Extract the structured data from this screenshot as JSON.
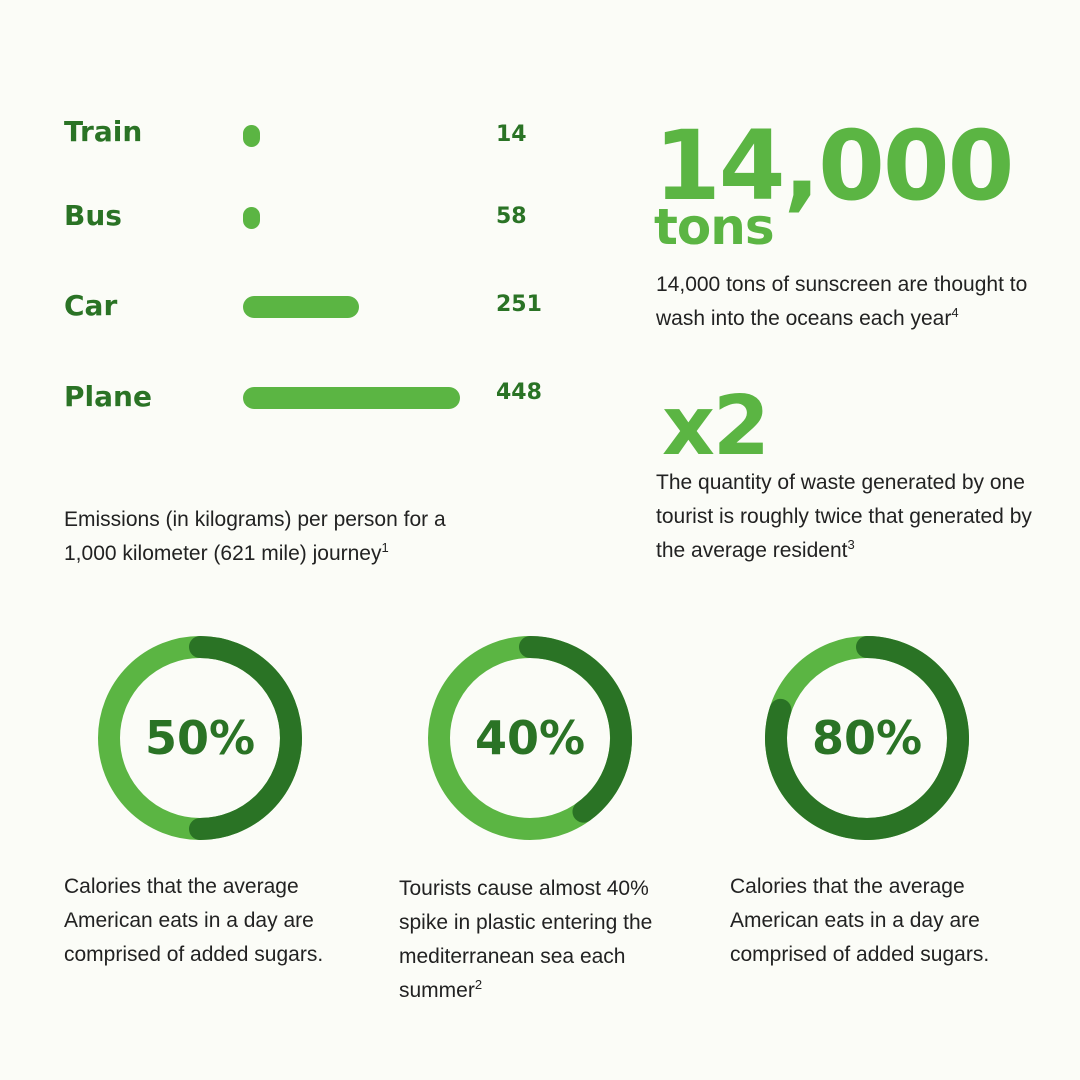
{
  "chart_data": [
    {
      "type": "bar",
      "orientation": "horizontal",
      "categories": [
        "Train",
        "Bus",
        "Car",
        "Plane"
      ],
      "values": [
        14,
        58,
        251,
        448
      ],
      "value_labels": [
        "14",
        "58",
        "251",
        "448"
      ],
      "caption": "Emissions (in kilograms) per person for a 1,000 kilometer (621 mile) journey",
      "caption_footnote": "1",
      "xlim": [
        0,
        448
      ],
      "grid": false,
      "bar_color": "#5bb543",
      "label_color": "#2a7325"
    },
    {
      "type": "pie",
      "style": "donut",
      "label": "50%",
      "value": 50,
      "caption": "Calories that the average American eats in a day are comprised of added sugars.",
      "colors": {
        "filled": "#2a7325",
        "rest": "#5bb543"
      }
    },
    {
      "type": "pie",
      "style": "donut",
      "label": "40%",
      "value": 40,
      "caption": "Tourists cause almost 40% spike in plastic entering the mediterranean sea each summer",
      "caption_footnote": "2",
      "colors": {
        "filled": "#2a7325",
        "rest": "#5bb543"
      }
    },
    {
      "type": "pie",
      "style": "donut",
      "label": "80%",
      "value": 80,
      "caption": "Calories that the average American eats in a day are comprised of added sugars.",
      "colors": {
        "filled": "#2a7325",
        "rest": "#5bb543"
      }
    }
  ],
  "stats": {
    "sunscreen": {
      "number": "14,000",
      "unit": "tons",
      "caption": "14,000 tons of sunscreen are thought to wash into the oceans each year",
      "footnote": "4"
    },
    "waste": {
      "number": "x2",
      "caption": "The quantity of waste generated by one tourist is roughly twice that generated by the average resident",
      "footnote": "3"
    }
  },
  "colors": {
    "accent": "#5bb543",
    "dark_green": "#2a7325",
    "background": "#fbfcf7",
    "text": "#222222"
  }
}
